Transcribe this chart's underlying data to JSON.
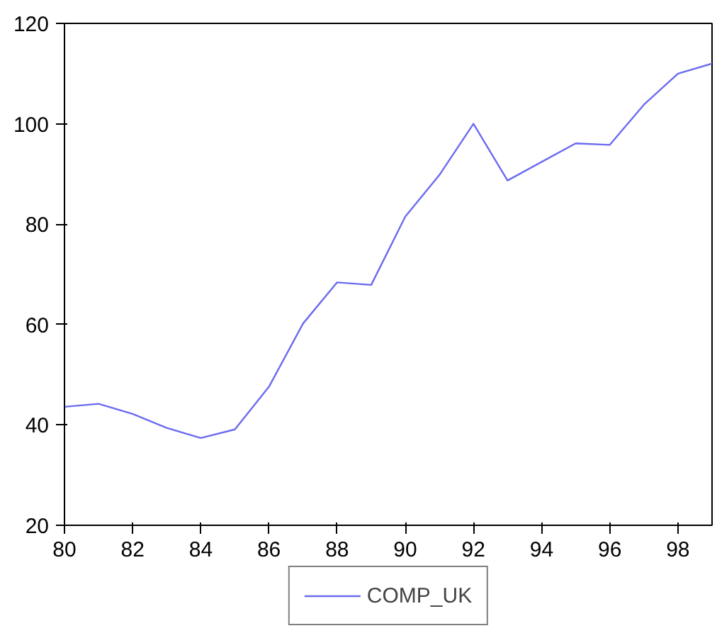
{
  "chart_data": {
    "type": "line",
    "x": [
      80,
      81,
      82,
      83,
      84,
      85,
      86,
      87,
      88,
      89,
      90,
      91,
      92,
      93,
      94,
      95,
      96,
      97,
      98,
      99
    ],
    "series": [
      {
        "name": "COMP_UK",
        "color": "#6b6bf0",
        "values": [
          43.6,
          44.2,
          42.2,
          39.4,
          37.4,
          39.1,
          47.6,
          60.2,
          68.4,
          67.9,
          81.5,
          89.8,
          100,
          88.7,
          92.4,
          96.1,
          95.8,
          103.8,
          110,
          112
        ]
      }
    ],
    "xlim": [
      80,
      99
    ],
    "xticks": [
      80,
      82,
      84,
      86,
      88,
      90,
      92,
      94,
      96,
      98
    ],
    "ylim": [
      20,
      120
    ],
    "yticks": [
      20,
      40,
      60,
      80,
      100,
      120
    ],
    "grid": false,
    "legend": "bottom",
    "marker": "none",
    "line_style": "solid"
  }
}
